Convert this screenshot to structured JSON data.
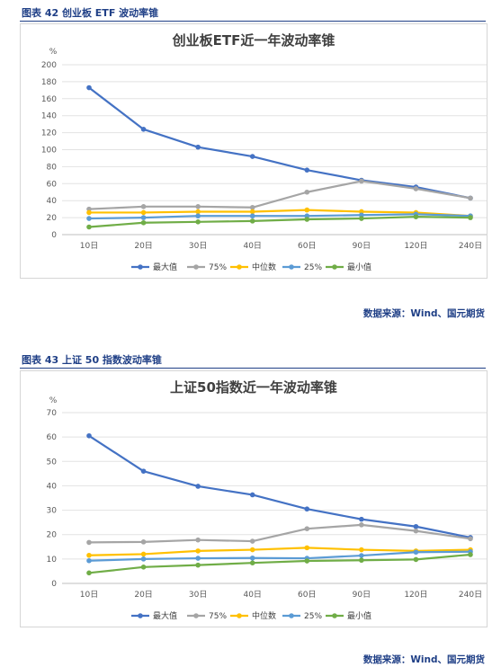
{
  "figure1": {
    "caption": "图表 42  创业板 ETF 波动率锥",
    "source": "数据来源：Wind、国元期货"
  },
  "figure2": {
    "caption": "图表 43  上证 50 指数波动率锥",
    "source": "数据来源：Wind、国元期货"
  },
  "chart_data": [
    {
      "type": "line",
      "title": "创业板ETF近一年波动率锥",
      "ylabel": "%",
      "xlabel": "",
      "categories": [
        "10日",
        "20日",
        "30日",
        "40日",
        "60日",
        "90日",
        "120日",
        "240日"
      ],
      "ylim": [
        0,
        200
      ],
      "yticks": [
        0,
        20,
        40,
        60,
        80,
        100,
        120,
        140,
        160,
        180,
        200
      ],
      "grid": true,
      "legend": "bottom",
      "series": [
        {
          "name": "最大值",
          "color": "#4472c4",
          "values": [
            173,
            124,
            103,
            92,
            76,
            64,
            56,
            43
          ]
        },
        {
          "name": "75%",
          "color": "#a5a5a5",
          "values": [
            30,
            33,
            33,
            32,
            50,
            63,
            54,
            43
          ]
        },
        {
          "name": "中位数",
          "color": "#ffc000",
          "values": [
            26,
            26,
            27,
            27,
            29,
            27,
            26,
            22
          ]
        },
        {
          "name": "25%",
          "color": "#5b9bd5",
          "values": [
            19,
            20,
            22,
            22,
            22,
            23,
            24,
            22
          ]
        },
        {
          "name": "最小值",
          "color": "#70ad47",
          "values": [
            9,
            14,
            15,
            16,
            18,
            19,
            21,
            20
          ]
        }
      ]
    },
    {
      "type": "line",
      "title": "上证50指数近一年波动率锥",
      "ylabel": "%",
      "xlabel": "",
      "categories": [
        "10日",
        "20日",
        "30日",
        "40日",
        "60日",
        "90日",
        "120日",
        "240日"
      ],
      "ylim": [
        0,
        70
      ],
      "yticks": [
        0,
        10,
        20,
        30,
        40,
        50,
        60,
        70
      ],
      "grid": true,
      "legend": "bottom",
      "series": [
        {
          "name": "最大值",
          "color": "#4472c4",
          "values": [
            60.5,
            46,
            39.8,
            36.3,
            30.5,
            26.3,
            23.3,
            18.8
          ]
        },
        {
          "name": "75%",
          "color": "#a5a5a5",
          "values": [
            16.8,
            17,
            17.8,
            17.3,
            22.4,
            24,
            21.5,
            18.3
          ]
        },
        {
          "name": "中位数",
          "color": "#ffc000",
          "values": [
            11.5,
            12,
            13.3,
            13.8,
            14.6,
            13.8,
            13.3,
            13.8
          ]
        },
        {
          "name": "25%",
          "color": "#5b9bd5",
          "values": [
            9.3,
            10,
            10.3,
            10.4,
            10.3,
            11.4,
            12.8,
            13
          ]
        },
        {
          "name": "最小值",
          "color": "#70ad47",
          "values": [
            4.3,
            6.7,
            7.5,
            8.4,
            9.2,
            9.5,
            9.8,
            11.8
          ]
        }
      ]
    }
  ]
}
